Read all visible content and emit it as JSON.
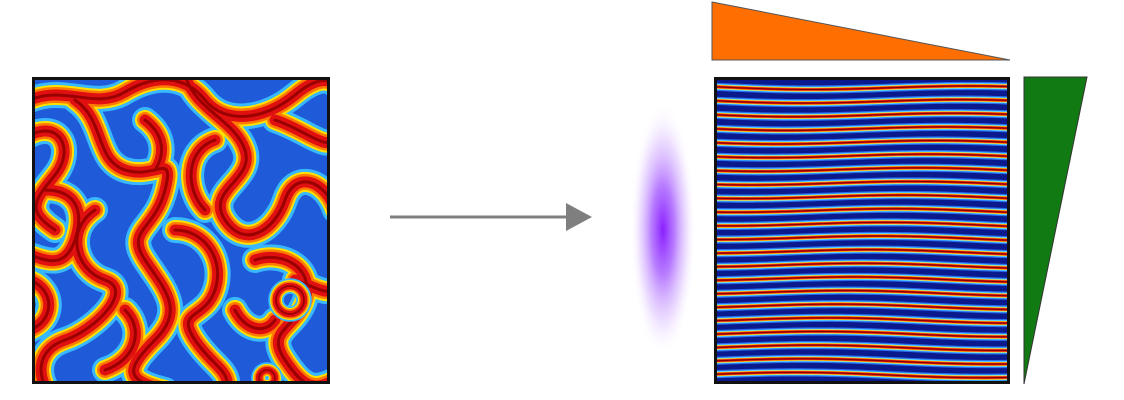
{
  "diagram": {
    "colors": {
      "stripe_cycle": [
        "#0a1a8c",
        "#2a6cf0",
        "#38b8ff",
        "#8af0ff",
        "#ffe100",
        "#ff7a00",
        "#e01010",
        "#7a0000",
        "#e01010",
        "#ff7a00",
        "#ffe100",
        "#8af0ff",
        "#38b8ff",
        "#2a6cf0"
      ],
      "arrow": "#7f7f7f",
      "top_wedge": "#ff6e00",
      "side_wedge": "#127a12",
      "glow": "#9b30ff",
      "panel_border": "#111111"
    },
    "left_pattern": {
      "kind": "labyrinth",
      "icon": "turing-labyrinth-pattern"
    },
    "right_pattern": {
      "kind": "horizontal-stripes",
      "stripe_count": 22,
      "icon": "aligned-stripe-pattern"
    },
    "arrow_icon": "right-arrow-icon",
    "top_wedge_icon": "gradient-wedge-horizontal",
    "side_wedge_icon": "gradient-wedge-vertical",
    "glow_icon": "anisotropic-glow"
  }
}
